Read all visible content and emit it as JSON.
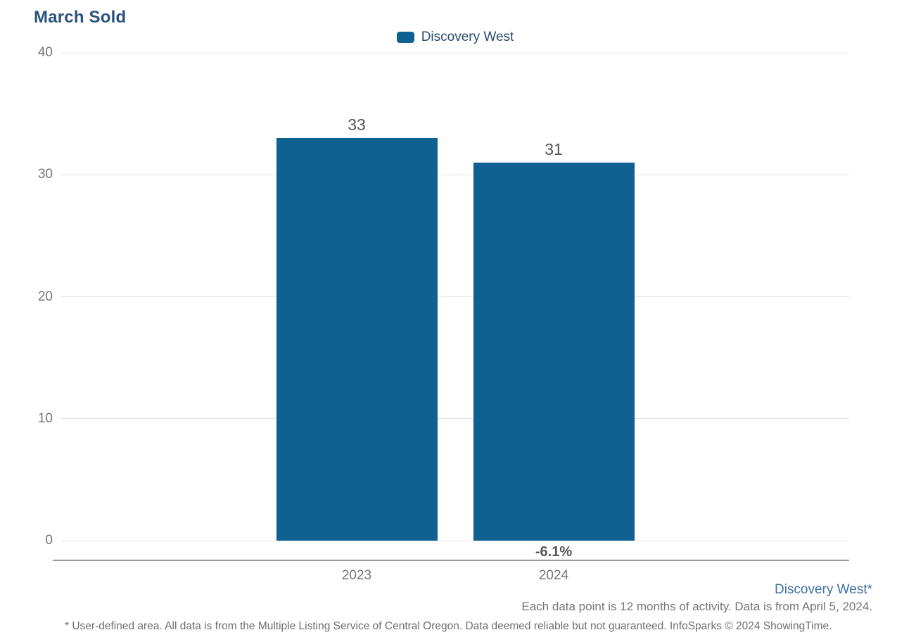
{
  "title": "March Sold",
  "legend": {
    "label": "Discovery West"
  },
  "chart_data": {
    "type": "bar",
    "title": "March Sold",
    "series": [
      {
        "name": "Discovery West",
        "values": [
          33,
          31
        ]
      }
    ],
    "categories": [
      "2023",
      "2024"
    ],
    "values": [
      33,
      31
    ],
    "value_labels": [
      "33",
      "31"
    ],
    "pct_change_labels": [
      "",
      "-6.1%"
    ],
    "xlabel": "",
    "ylabel": "",
    "ylim": [
      0,
      40
    ],
    "yticks": [
      0,
      10,
      20,
      30,
      40
    ],
    "grid": "horizontal",
    "legend_position": "top-center"
  },
  "footer": {
    "series_note": "Discovery West*",
    "data_note": "Each data point is 12 months of activity. Data is from April 5, 2024.",
    "disclaimer": "* User-defined area. All data is from the Multiple Listing Service of Central Oregon. Data deemed reliable but not guaranteed. InfoSparks © 2024 ShowingTime."
  },
  "colors": {
    "bar": "#0F6191",
    "title_text": "#2B517E",
    "legend_text": "#2B4C6F",
    "footer_link": "#4171A3",
    "axis_text": "#757575",
    "value_text": "#555555",
    "gridline": "#e3e3e3",
    "axis_line": "#999999",
    "disclaimer_text": "#6e6e6e"
  }
}
